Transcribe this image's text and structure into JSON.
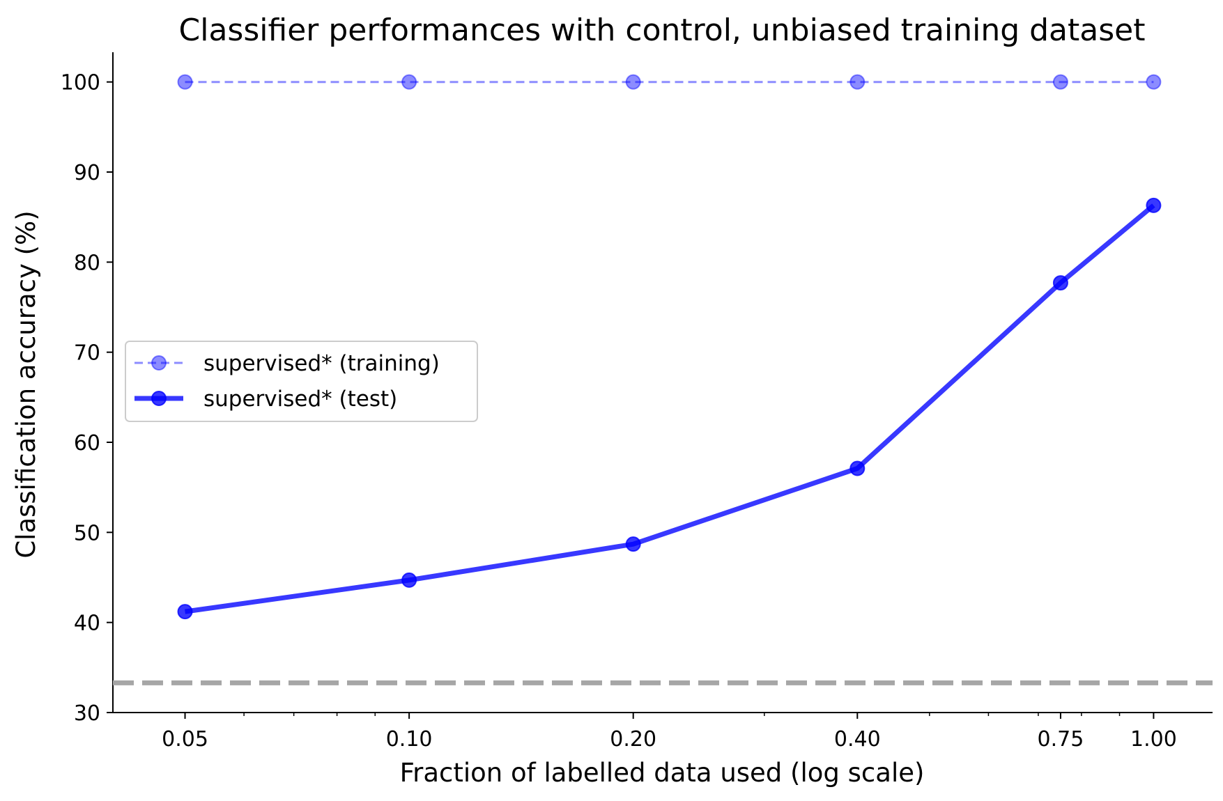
{
  "chart_data": {
    "type": "line",
    "title": "Classifier performances with control, unbiased training dataset",
    "xlabel": "Fraction of labelled data used (log scale)",
    "ylabel": "Classification accuracy (%)",
    "xscale": "log",
    "xlim": [
      0.04,
      1.2
    ],
    "ylim": [
      30,
      103.3
    ],
    "x": [
      0.05,
      0.1,
      0.2,
      0.4,
      0.75,
      1.0
    ],
    "x_tick_labels": [
      "0.05",
      "0.10",
      "0.20",
      "0.40",
      "0.75",
      "1.00"
    ],
    "y_ticks": [
      30,
      40,
      50,
      60,
      70,
      80,
      90,
      100
    ],
    "y_tick_labels": [
      "30",
      "40",
      "50",
      "60",
      "70",
      "80",
      "90",
      "100"
    ],
    "series": [
      {
        "name": "supervised* (training)",
        "values": [
          100,
          100,
          100,
          100,
          100,
          100
        ],
        "color": "#0000ff",
        "opacity": 0.45,
        "style": "dashed"
      },
      {
        "name": "supervised* (test)",
        "values": [
          41.2,
          44.7,
          48.7,
          57.1,
          77.7,
          86.3
        ],
        "color": "#0000ff",
        "opacity": 0.78,
        "style": "solid"
      }
    ],
    "reference_line": {
      "y": 33.3,
      "color": "#a6a6a6",
      "style": "dashed",
      "label": ""
    },
    "legend_position": "center-left",
    "grid": false
  }
}
